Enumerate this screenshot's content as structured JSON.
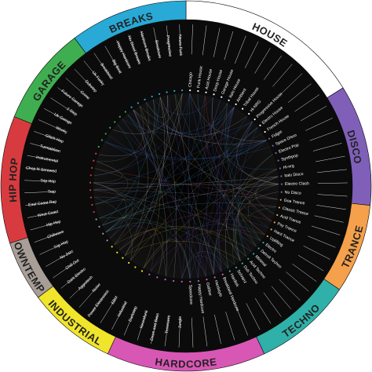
{
  "diagram": {
    "background": "#0b0b0b",
    "tick_color": "#ffffff",
    "chord_colors": [
      "#3a6fd8",
      "#c9c9c9",
      "#d14848",
      "#3fae5c",
      "#6d4bb0",
      "#c7b13a",
      "#3bb0c8",
      "#8a8a8a"
    ],
    "sectors": [
      {
        "id": "house",
        "label": "HOUSE",
        "color": "#ffffff",
        "text_color": "#222222",
        "start": 0,
        "end": 58,
        "genres": [
          "Chicago",
          "Funk House",
          "Acid House",
          "Deep House",
          "Garage House",
          "Italo House",
          "Ambient",
          "Tribal House",
          "Hi-NRG",
          "Progressive House",
          "Electro House",
          "French House"
        ]
      },
      {
        "id": "disco",
        "label": "DISCO",
        "color": "#7f5fb8",
        "text_color": "#222222",
        "start": 58,
        "end": 96,
        "genres": [
          "Fidget",
          "Space Disco",
          "Electro Pop",
          "Synthpop",
          "Hi-nrg",
          "Italo Disco",
          "Electro Clash",
          "Nu Disco"
        ]
      },
      {
        "id": "trance",
        "label": "TRANCE",
        "color": "#f5a04a",
        "text_color": "#222222",
        "start": 96,
        "end": 124,
        "genres": [
          "Goa Trance",
          "Classic Trance",
          "Acid Trance",
          "Psy Trance",
          "Hard Trance",
          "Uplifting"
        ]
      },
      {
        "id": "techno",
        "label": "TECHNO",
        "color": "#2fb0a8",
        "text_color": "#222222",
        "start": 124,
        "end": 155,
        "genres": [
          "Electro",
          "Detroit Techno",
          "Minimal",
          "Acid Techno",
          "Dub Techno",
          "Schranz",
          "Hardtek"
        ]
      },
      {
        "id": "hardcore",
        "label": "HARDCORE",
        "color": "#d857b5",
        "text_color": "#222222",
        "start": 155,
        "end": 205,
        "genres": [
          "Breakbeat Hardcore",
          "Hardstyle",
          "Gabber",
          "Happy Hardcore",
          "Speedcore",
          "Jungle",
          "Terrorcore",
          "Drum and Bass",
          "Neurofunk",
          "Darkstep"
        ]
      },
      {
        "id": "industrial",
        "label": "INDUSTRIAL",
        "color": "#f0e52a",
        "text_color": "#222222",
        "start": 205,
        "end": 233,
        "genres": [
          "Industrial",
          "EBM",
          "Power Electronics",
          "Noise",
          "Aggrotech",
          "Dark Electro"
        ]
      },
      {
        "id": "downtempo",
        "label": "DOWNTEMPO",
        "color": "#a79e97",
        "text_color": "#222222",
        "start": 233,
        "end": 252,
        "genres": [
          "Chill Out",
          "Nu Jazz",
          "Trip Hop",
          "Chillwave"
        ]
      },
      {
        "id": "hiphop",
        "label": "HIP HOP",
        "color": "#d83b3f",
        "text_color": "#222222",
        "start": 252,
        "end": 292,
        "genres": [
          "Hip Hop",
          "West Coast",
          "East Coast Rap",
          "Trap",
          "Trip Hop",
          "Chop N Screwed",
          "Instrumental",
          "Turntablism",
          "Glitch Hop"
        ]
      },
      {
        "id": "garage",
        "label": "GARAGE",
        "color": "#3fae50",
        "text_color": "#222222",
        "start": 292,
        "end": 323,
        "genres": [
          "Wonky",
          "Uk Garage",
          "2 Step",
          "Future Garage",
          "Grime",
          "Dubstep",
          "Uk Funky"
        ]
      },
      {
        "id": "breaks",
        "label": "BREAKS",
        "color": "#28a9d6",
        "text_color": "#222222",
        "start": 323,
        "end": 360,
        "genres": [
          "Breakbeat",
          "Big Beat",
          "Happy Hardcore",
          "Nu Skool Breaks",
          "Hardcore Breaks",
          "Breakcore",
          "Progressive",
          "Neuro Funk"
        ]
      }
    ]
  }
}
